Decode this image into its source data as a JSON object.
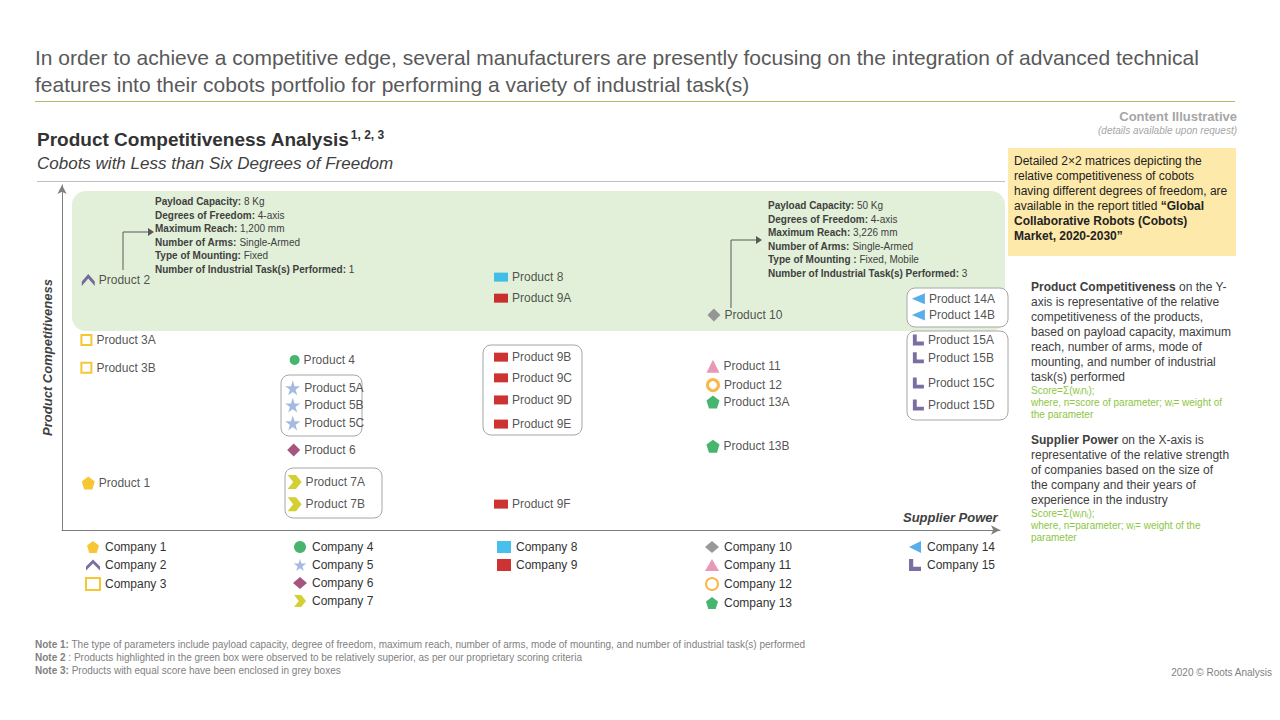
{
  "chart_data": {
    "type": "scatter",
    "headline": "In order to achieve a competitive edge, several manufacturers are presently focusing on the integration of advanced technical features into their cobots portfolio for performing a variety of industrial task(s)",
    "title": "Product Competitiveness Analysis",
    "title_superscript": "1, 2, 3",
    "subtitle": "Cobots with Less than Six Degrees of Freedom",
    "stamp": "Content Illustrative",
    "stamp_note": "(details available upon request)",
    "x_label": "Supplier Power",
    "y_label": "Product Competitiveness",
    "xlim": [
      0,
      100
    ],
    "ylim": [
      0,
      100
    ],
    "tick_labels": false,
    "grid": false,
    "legend": "bottom",
    "series": [
      {
        "name": "Company 1",
        "color": "#f5b800",
        "marker": "pentagon",
        "labels": [
          "Product 1"
        ],
        "x": [
          2.8
        ],
        "y": [
          13.6
        ]
      },
      {
        "name": "Company 2",
        "color": "#5a4a8a",
        "marker": "chevron",
        "labels": [
          "Product 2"
        ],
        "x": [
          2.8
        ],
        "y": [
          72.5
        ]
      },
      {
        "name": "Company 3",
        "color": "#f5b800",
        "marker": "square_open",
        "labels": [
          "Product 3A",
          "Product 3B"
        ],
        "x": [
          2.6,
          2.6
        ],
        "y": [
          55.1,
          47.0
        ]
      },
      {
        "name": "Company 4",
        "color": "#1aa34a",
        "marker": "circle",
        "labels": [
          "Product 4"
        ],
        "x": [
          24.8
        ],
        "y": [
          49.3
        ]
      },
      {
        "name": "Company 5",
        "color": "#8ea9db",
        "marker": "star",
        "labels": [
          "Product 5A",
          "Product 5B",
          "Product 5C"
        ],
        "x": [
          24.6,
          24.6,
          24.6
        ],
        "y": [
          41.2,
          36.2,
          31.0
        ]
      },
      {
        "name": "Company 6",
        "color": "#8e2a5e",
        "marker": "diamond",
        "labels": [
          "Product 6"
        ],
        "x": [
          24.7
        ],
        "y": [
          23.2
        ]
      },
      {
        "name": "Company 7",
        "color": "#c9c300",
        "marker": "arrow",
        "labels": [
          "Product 7A",
          "Product 7B"
        ],
        "x": [
          24.8,
          24.8
        ],
        "y": [
          13.9,
          7.5
        ]
      },
      {
        "name": "Company 8",
        "color": "#1ab0ea",
        "marker": "rect",
        "labels": [
          "Product 8"
        ],
        "x": [
          46.8
        ],
        "y": [
          73.3
        ]
      },
      {
        "name": "Company 9",
        "color": "#c00000",
        "marker": "rect",
        "labels": [
          "Product 9A",
          "Product 9B",
          "Product 9C",
          "Product 9D",
          "Product 9E",
          "Product 9F"
        ],
        "x": [
          46.8,
          46.8,
          46.8,
          46.8,
          46.8,
          46.8
        ],
        "y": [
          67.2,
          50.1,
          44.1,
          37.7,
          30.7,
          7.5
        ]
      },
      {
        "name": "Company 10",
        "color": "#7f7f7f",
        "marker": "diamond",
        "labels": [
          "Product 10"
        ],
        "x": [
          69.5
        ],
        "y": [
          62.3
        ]
      },
      {
        "name": "Company 11",
        "color": "#e27fa6",
        "marker": "triangle",
        "labels": [
          "Product 11"
        ],
        "x": [
          69.4
        ],
        "y": [
          47.5
        ]
      },
      {
        "name": "Company 12",
        "color": "#f5a623",
        "marker": "target",
        "labels": [
          "Product 12"
        ],
        "x": [
          69.4
        ],
        "y": [
          42.0
        ]
      },
      {
        "name": "Company 13",
        "color": "#1aa34a",
        "marker": "pentagon",
        "labels": [
          "Product 13A",
          "Product 13B"
        ],
        "x": [
          69.4,
          69.4
        ],
        "y": [
          37.1,
          24.3
        ]
      },
      {
        "name": "Company 14",
        "color": "#2e9ae6",
        "marker": "triangle_left",
        "labels": [
          "Product 14A",
          "Product 14B"
        ],
        "x": [
          91.3,
          91.3
        ],
        "y": [
          67.0,
          62.3
        ]
      },
      {
        "name": "Company 15",
        "color": "#5a4a8a",
        "marker": "l_shape",
        "labels": [
          "Product 15A",
          "Product 15B",
          "Product 15C",
          "Product 15D"
        ],
        "x": [
          91.3,
          91.3,
          91.3,
          91.3
        ],
        "y": [
          55.1,
          49.9,
          42.6,
          36.2
        ]
      }
    ],
    "annotations": [
      {
        "product": "Product 2",
        "lines": [
          [
            "Payload Capacity:",
            "8 Kg"
          ],
          [
            "Degrees of Freedom:",
            "4-axis"
          ],
          [
            "Maximum Reach:",
            "1,200 mm"
          ],
          [
            "Number of Arms:",
            "Single-Armed"
          ],
          [
            "Type of Mounting:",
            "Fixed"
          ],
          [
            "Number of Industrial Task(s) Performed:",
            "1"
          ]
        ]
      },
      {
        "product": "Product 10",
        "lines": [
          [
            "Payload Capacity:",
            "50 Kg"
          ],
          [
            "Degrees of Freedom:",
            "4-axis"
          ],
          [
            "Maximum Reach:",
            "3,226 mm"
          ],
          [
            "Number of Arms:",
            "Single-Armed"
          ],
          [
            "Type of Mounting :",
            "Fixed, Mobile"
          ],
          [
            "Number of Industrial Task(s) Performed:",
            "3"
          ]
        ]
      }
    ],
    "callout": {
      "text": "Detailed 2×2 matrices depicting the relative competitiveness of cobots having different degrees of freedom, are available  in the report titled ",
      "emphasis": "“Global Collaborative Robots (Cobots)  Market, 2020-2030”"
    },
    "side_panel": [
      {
        "term": "Product Competitiveness",
        "text": " on the Y-axis is representative  of the relative competitiveness of the products, based on payload capacity, maximum reach, number of arms, mode of mounting, and number of industrial task(s) performed",
        "formula": "Score=Σ(wᵢnᵢ);",
        "formula_note": "where, n=score of parameter; wᵢ= weight of the parameter"
      },
      {
        "term": "Supplier Power",
        "text": " on the X-axis is representative  of the relative strength of companies based on the size of the company and their years of experience in the industry",
        "formula": "Score=Σ(wᵢnᵢ);",
        "formula_note": "where, n=parameter; wᵢ= weight of the parameter"
      }
    ],
    "notes": [
      {
        "label": "Note 1:",
        "text": "The type of parameters include payload capacity, degree of freedom, maximum reach, number of arms, mode of mounting, and number of industrial task(s) performed"
      },
      {
        "label": "Note 2",
        "text": ": Products highlighted in the green box were observed to be relatively superior, as per our proprietary scoring criteria"
      },
      {
        "label": "Note 3:",
        "text": "Products with equal score have been enclosed in grey boxes"
      }
    ],
    "copyright": "2020 © Roots Analysis"
  }
}
